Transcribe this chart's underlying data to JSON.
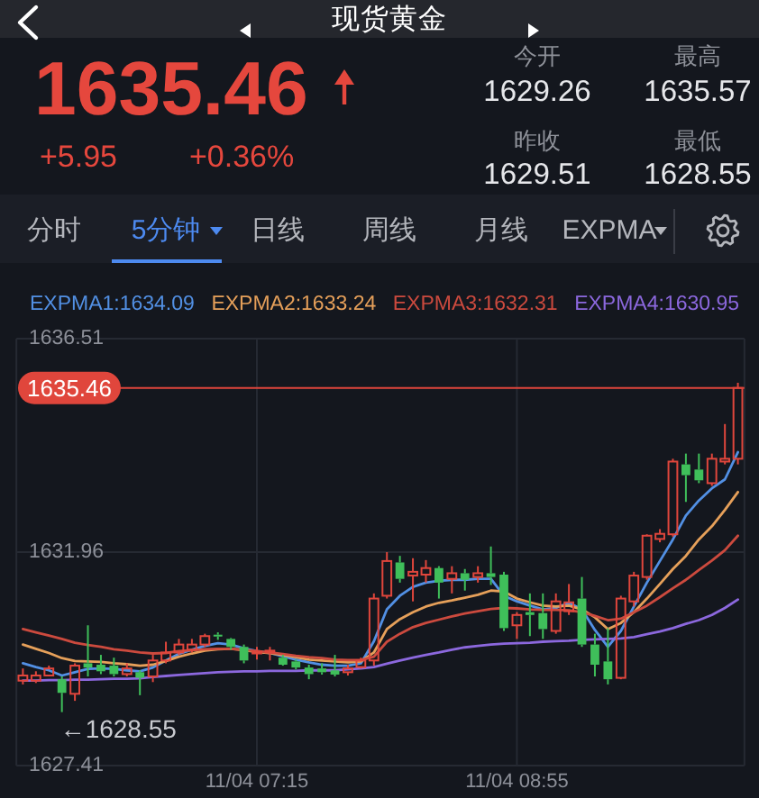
{
  "chart_data": {
    "type": "candlestick",
    "title": "现货黄金",
    "categories": [
      null,
      null,
      null,
      null,
      null,
      null,
      null,
      null,
      null,
      null,
      null,
      null,
      null,
      null,
      null,
      null,
      null,
      null,
      "11/04 07:15",
      null,
      null,
      null,
      null,
      null,
      null,
      null,
      null,
      null,
      null,
      null,
      null,
      null,
      null,
      null,
      null,
      null,
      null,
      null,
      "11/04 08:55",
      null,
      null,
      null,
      null,
      null,
      null,
      null,
      null,
      null,
      null,
      null,
      null,
      null,
      null,
      null,
      null,
      null
    ],
    "ohlc": [
      [
        1629.22,
        1629.48,
        1629.14,
        1629.33
      ],
      [
        1629.22,
        1629.42,
        1629.17,
        1629.33
      ],
      [
        1629.33,
        1629.54,
        1629.31,
        1629.48
      ],
      [
        1629.25,
        1629.31,
        1628.55,
        1628.96
      ],
      [
        1628.94,
        1629.59,
        1628.79,
        1629.54
      ],
      [
        1629.59,
        1630.4,
        1629.31,
        1629.5
      ],
      [
        1629.56,
        1629.77,
        1629.36,
        1629.42
      ],
      [
        1629.54,
        1629.71,
        1629.31,
        1629.36
      ],
      [
        1629.36,
        1629.59,
        1629.31,
        1629.48
      ],
      [
        1629.4,
        1629.44,
        1628.91,
        1629.28
      ],
      [
        1629.31,
        1629.77,
        1629.19,
        1629.65
      ],
      [
        1629.65,
        1630.05,
        1629.59,
        1629.82
      ],
      [
        1629.82,
        1630.11,
        1629.77,
        1629.99
      ],
      [
        1629.88,
        1630.11,
        1629.82,
        1629.99
      ],
      [
        1629.99,
        1630.22,
        1629.94,
        1630.17
      ],
      [
        1630.2,
        1630.25,
        1630.09,
        1630.16
      ],
      [
        1630.11,
        1630.13,
        1629.88,
        1629.94
      ],
      [
        1629.94,
        1629.99,
        1629.59,
        1629.65
      ],
      [
        1629.8,
        1629.94,
        1629.67,
        1629.84
      ],
      [
        1629.82,
        1629.94,
        1629.65,
        1629.86
      ],
      [
        1629.71,
        1629.77,
        1629.54,
        1629.56
      ],
      [
        1629.63,
        1629.67,
        1629.46,
        1629.5
      ],
      [
        1629.5,
        1629.56,
        1629.25,
        1629.36
      ],
      [
        1629.48,
        1629.59,
        1629.35,
        1629.4
      ],
      [
        1629.44,
        1629.77,
        1629.31,
        1629.35
      ],
      [
        1629.4,
        1629.56,
        1629.33,
        1629.48
      ],
      [
        1629.51,
        1629.71,
        1629.48,
        1629.65
      ],
      [
        1629.65,
        1631.08,
        1629.54,
        1630.97
      ],
      [
        1631.03,
        1631.96,
        1630.97,
        1631.77
      ],
      [
        1631.74,
        1631.88,
        1631.31,
        1631.39
      ],
      [
        1631.46,
        1631.83,
        1630.91,
        1631.54
      ],
      [
        1631.48,
        1631.79,
        1631.31,
        1631.62
      ],
      [
        1631.62,
        1631.66,
        1630.97,
        1631.31
      ],
      [
        1631.39,
        1631.66,
        1631.08,
        1631.51
      ],
      [
        1631.51,
        1631.6,
        1631.14,
        1631.37
      ],
      [
        1631.43,
        1631.66,
        1631.31,
        1631.51
      ],
      [
        1631.51,
        1632.08,
        1631.26,
        1631.43
      ],
      [
        1631.48,
        1631.54,
        1630.28,
        1630.34
      ],
      [
        1630.4,
        1630.68,
        1630.11,
        1630.62
      ],
      [
        1630.68,
        1631.08,
        1630.17,
        1630.62
      ],
      [
        1630.66,
        1631.08,
        1630.11,
        1630.32
      ],
      [
        1630.28,
        1631.08,
        1630.22,
        1630.91
      ],
      [
        1630.7,
        1631.28,
        1630.62,
        1630.89
      ],
      [
        1630.97,
        1631.43,
        1629.94,
        1629.99
      ],
      [
        1629.99,
        1630.22,
        1629.31,
        1629.56
      ],
      [
        1629.63,
        1630.34,
        1629.14,
        1629.25
      ],
      [
        1629.28,
        1631.03,
        1629.25,
        1630.97
      ],
      [
        1630.91,
        1631.54,
        1630.8,
        1631.46
      ],
      [
        1631.43,
        1632.34,
        1631.37,
        1632.31
      ],
      [
        1632.24,
        1632.45,
        1632.17,
        1632.35
      ],
      [
        1632.34,
        1633.95,
        1632.29,
        1633.89
      ],
      [
        1633.83,
        1634.06,
        1633.03,
        1633.6
      ],
      [
        1633.72,
        1634.06,
        1633.43,
        1633.49
      ],
      [
        1633.43,
        1634.06,
        1633.37,
        1633.95
      ],
      [
        1633.89,
        1634.69,
        1633.83,
        1633.95
      ],
      [
        1633.95,
        1635.57,
        1633.83,
        1635.46
      ]
    ],
    "colors": [
      "#e0463c",
      "#e0463c",
      "#e0463c",
      "#3fbf5a",
      "#e0463c",
      "#3fbf5a",
      "#3fbf5a",
      "#3fbf5a",
      "#e0463c",
      "#3fbf5a",
      "#e0463c",
      "#e0463c",
      "#e0463c",
      "#e0463c",
      "#e0463c",
      "#3fbf5a",
      "#3fbf5a",
      "#3fbf5a",
      "#e0463c",
      "#e0463c",
      "#3fbf5a",
      "#3fbf5a",
      "#3fbf5a",
      "#3fbf5a",
      "#3fbf5a",
      "#e0463c",
      "#e0463c",
      "#e0463c",
      "#e0463c",
      "#3fbf5a",
      "#e0463c",
      "#e0463c",
      "#3fbf5a",
      "#e0463c",
      "#3fbf5a",
      "#e0463c",
      "#3fbf5a",
      "#3fbf5a",
      "#e0463c",
      "#3fbf5a",
      "#3fbf5a",
      "#e0463c",
      "#e0463c",
      "#3fbf5a",
      "#3fbf5a",
      "#3fbf5a",
      "#e0463c",
      "#e0463c",
      "#e0463c",
      "#e0463c",
      "#e0463c",
      "#3fbf5a",
      "#3fbf5a",
      "#e0463c",
      "#e0463c",
      "#e0463c"
    ],
    "series": [
      {
        "name": "EXPMA1:1634.09",
        "type": "line",
        "color": "#5290e4",
        "values": [
          1629.59,
          1629.51,
          1629.44,
          1629.33,
          1629.4,
          1629.47,
          1629.48,
          1629.47,
          1629.44,
          1629.42,
          1629.5,
          1629.65,
          1629.79,
          1629.88,
          1629.96,
          1630.02,
          1629.99,
          1629.91,
          1629.85,
          1629.81,
          1629.74,
          1629.67,
          1629.61,
          1629.56,
          1629.54,
          1629.54,
          1629.59,
          1630.06,
          1630.74,
          1631.03,
          1631.22,
          1631.31,
          1631.35,
          1631.37,
          1631.37,
          1631.39,
          1631.39,
          1631.03,
          1630.91,
          1630.82,
          1630.74,
          1630.77,
          1630.88,
          1630.74,
          1630.3,
          1629.94,
          1630.28,
          1630.8,
          1631.31,
          1631.77,
          1632.23,
          1632.74,
          1633.06,
          1633.32,
          1633.51,
          1634.09
        ]
      },
      {
        "name": "EXPMA2:1633.24",
        "type": "line",
        "color": "#e6a05a",
        "values": [
          1629.99,
          1629.9,
          1629.81,
          1629.7,
          1629.64,
          1629.63,
          1629.62,
          1629.59,
          1629.57,
          1629.54,
          1629.56,
          1629.64,
          1629.73,
          1629.8,
          1629.86,
          1629.89,
          1629.9,
          1629.87,
          1629.83,
          1629.81,
          1629.77,
          1629.72,
          1629.67,
          1629.65,
          1629.63,
          1629.61,
          1629.63,
          1629.82,
          1630.32,
          1630.53,
          1630.68,
          1630.8,
          1630.88,
          1630.93,
          1630.99,
          1631.05,
          1631.14,
          1631.12,
          1630.97,
          1630.89,
          1630.82,
          1630.8,
          1630.82,
          1630.74,
          1630.57,
          1630.32,
          1630.45,
          1630.68,
          1630.97,
          1631.28,
          1631.6,
          1631.88,
          1632.23,
          1632.51,
          1632.86,
          1633.24
        ]
      },
      {
        "name": "EXPMA3:1632.31",
        "type": "line",
        "color": "#cc4a3e",
        "values": [
          1630.32,
          1630.25,
          1630.18,
          1630.11,
          1630.03,
          1629.98,
          1629.94,
          1629.89,
          1629.86,
          1629.82,
          1629.8,
          1629.81,
          1629.85,
          1629.87,
          1629.89,
          1629.9,
          1629.9,
          1629.88,
          1629.85,
          1629.82,
          1629.79,
          1629.75,
          1629.72,
          1629.7,
          1629.67,
          1629.66,
          1629.66,
          1629.73,
          1630.05,
          1630.22,
          1630.36,
          1630.45,
          1630.52,
          1630.59,
          1630.65,
          1630.7,
          1630.75,
          1630.77,
          1630.76,
          1630.74,
          1630.73,
          1630.73,
          1630.72,
          1630.68,
          1630.6,
          1630.51,
          1630.54,
          1630.68,
          1630.82,
          1631.0,
          1631.19,
          1631.37,
          1631.58,
          1631.78,
          1632.0,
          1632.31
        ]
      },
      {
        "name": "EXPMA4:1630.95",
        "type": "line",
        "color": "#8c68de",
        "values": [
          1629.22,
          1629.22,
          1629.23,
          1629.23,
          1629.24,
          1629.24,
          1629.25,
          1629.26,
          1629.26,
          1629.27,
          1629.3,
          1629.32,
          1629.34,
          1629.36,
          1629.38,
          1629.4,
          1629.41,
          1629.42,
          1629.42,
          1629.43,
          1629.43,
          1629.43,
          1629.44,
          1629.44,
          1629.44,
          1629.46,
          1629.48,
          1629.51,
          1629.58,
          1629.65,
          1629.71,
          1629.77,
          1629.82,
          1629.88,
          1629.93,
          1629.96,
          1629.99,
          1630.01,
          1630.02,
          1630.03,
          1630.05,
          1630.06,
          1630.07,
          1630.09,
          1630.1,
          1630.11,
          1630.12,
          1630.15,
          1630.21,
          1630.27,
          1630.34,
          1630.43,
          1630.51,
          1630.62,
          1630.77,
          1630.95
        ]
      }
    ],
    "ylim": [
      1627.41,
      1636.51
    ],
    "yticks": [
      1627.41,
      1631.96,
      1636.51
    ],
    "grid": true,
    "legend": "top",
    "ref_lines": [
      {
        "axis": "y",
        "value": 1635.46,
        "label": "1635.46",
        "color": "#e0463c"
      }
    ],
    "annotations": [
      "1635.46",
      "+5.95",
      "+0.36%",
      "今开",
      "1629.26",
      "最高",
      "1635.57",
      "昨收",
      "1629.51",
      "最低",
      "1628.55",
      "分时",
      "5分钟",
      "日线",
      "周线",
      "月线",
      "EXPMA",
      "←1628.55"
    ]
  }
}
